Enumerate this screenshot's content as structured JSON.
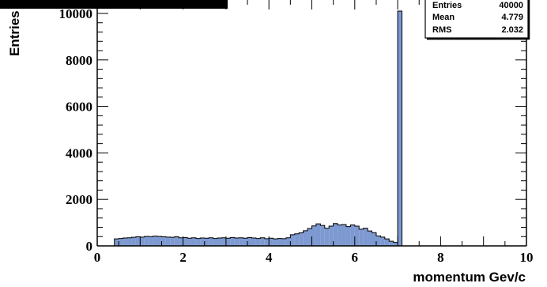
{
  "chart_data": {
    "type": "bar",
    "title": "",
    "xlabel": "momentum Gev/c",
    "ylabel": "Entries",
    "xlim": [
      0,
      10
    ],
    "ylim": [
      0,
      10000
    ],
    "x_ticks": [
      "0",
      "2",
      "4",
      "6",
      "8",
      "10"
    ],
    "y_ticks": [
      "0",
      "2000",
      "4000",
      "6000",
      "8000",
      "10000"
    ],
    "bin_width": 0.1,
    "fill_color": "#7d99d1",
    "line_color": "#000000",
    "bins": [
      {
        "x": 0.4,
        "value": 300
      },
      {
        "x": 0.5,
        "value": 320
      },
      {
        "x": 0.6,
        "value": 340
      },
      {
        "x": 0.7,
        "value": 350
      },
      {
        "x": 0.8,
        "value": 370
      },
      {
        "x": 0.9,
        "value": 390
      },
      {
        "x": 1.0,
        "value": 380
      },
      {
        "x": 1.1,
        "value": 410
      },
      {
        "x": 1.2,
        "value": 400
      },
      {
        "x": 1.3,
        "value": 420
      },
      {
        "x": 1.4,
        "value": 410
      },
      {
        "x": 1.5,
        "value": 390
      },
      {
        "x": 1.6,
        "value": 380
      },
      {
        "x": 1.7,
        "value": 370
      },
      {
        "x": 1.8,
        "value": 390
      },
      {
        "x": 1.9,
        "value": 350
      },
      {
        "x": 2.0,
        "value": 360
      },
      {
        "x": 2.1,
        "value": 330
      },
      {
        "x": 2.2,
        "value": 350
      },
      {
        "x": 2.3,
        "value": 320
      },
      {
        "x": 2.4,
        "value": 340
      },
      {
        "x": 2.5,
        "value": 330
      },
      {
        "x": 2.6,
        "value": 350
      },
      {
        "x": 2.7,
        "value": 320
      },
      {
        "x": 2.8,
        "value": 340
      },
      {
        "x": 2.9,
        "value": 350
      },
      {
        "x": 3.0,
        "value": 330
      },
      {
        "x": 3.1,
        "value": 360
      },
      {
        "x": 3.2,
        "value": 340
      },
      {
        "x": 3.3,
        "value": 350
      },
      {
        "x": 3.4,
        "value": 330
      },
      {
        "x": 3.5,
        "value": 360
      },
      {
        "x": 3.6,
        "value": 340
      },
      {
        "x": 3.7,
        "value": 320
      },
      {
        "x": 3.8,
        "value": 350
      },
      {
        "x": 3.9,
        "value": 310
      },
      {
        "x": 4.0,
        "value": 330
      },
      {
        "x": 4.1,
        "value": 300
      },
      {
        "x": 4.2,
        "value": 320
      },
      {
        "x": 4.3,
        "value": 310
      },
      {
        "x": 4.4,
        "value": 350
      },
      {
        "x": 4.5,
        "value": 480
      },
      {
        "x": 4.6,
        "value": 520
      },
      {
        "x": 4.7,
        "value": 560
      },
      {
        "x": 4.8,
        "value": 650
      },
      {
        "x": 4.9,
        "value": 750
      },
      {
        "x": 5.0,
        "value": 860
      },
      {
        "x": 5.1,
        "value": 950
      },
      {
        "x": 5.2,
        "value": 880
      },
      {
        "x": 5.3,
        "value": 760
      },
      {
        "x": 5.4,
        "value": 850
      },
      {
        "x": 5.5,
        "value": 960
      },
      {
        "x": 5.6,
        "value": 900
      },
      {
        "x": 5.7,
        "value": 920
      },
      {
        "x": 5.8,
        "value": 830
      },
      {
        "x": 5.9,
        "value": 900
      },
      {
        "x": 6.0,
        "value": 850
      },
      {
        "x": 6.1,
        "value": 720
      },
      {
        "x": 6.2,
        "value": 760
      },
      {
        "x": 6.3,
        "value": 640
      },
      {
        "x": 6.4,
        "value": 570
      },
      {
        "x": 6.5,
        "value": 430
      },
      {
        "x": 6.6,
        "value": 380
      },
      {
        "x": 6.7,
        "value": 300
      },
      {
        "x": 6.8,
        "value": 200
      },
      {
        "x": 6.9,
        "value": 150
      },
      {
        "x": 7.0,
        "value": 10100
      }
    ],
    "stats": {
      "rows": [
        {
          "label": "Entries",
          "value": "40000"
        },
        {
          "label": "Mean",
          "value": "4.779"
        },
        {
          "label": "RMS",
          "value": "2.032"
        }
      ]
    }
  }
}
